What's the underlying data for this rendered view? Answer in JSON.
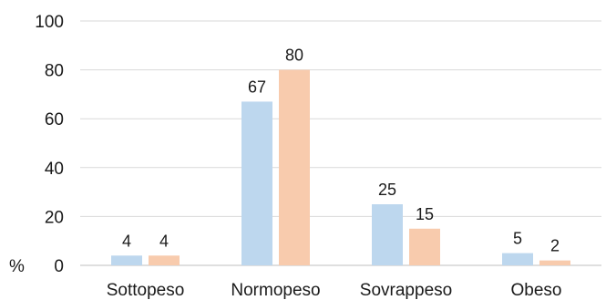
{
  "chart_data": {
    "type": "bar",
    "categories": [
      "Sottopeso",
      "Normopeso",
      "Sovrappeso",
      "Obeso"
    ],
    "series": [
      {
        "values": [
          4,
          67,
          25,
          5
        ],
        "color": "#bdd7ee"
      },
      {
        "values": [
          4,
          80,
          15,
          2
        ],
        "color": "#f8cbad"
      }
    ],
    "ylabel": "%",
    "ylim": [
      0,
      100
    ],
    "yticks": [
      0,
      20,
      40,
      60,
      80,
      100
    ],
    "grid": true,
    "gridColor": "#d9d9d9",
    "legend": "none",
    "data_labels": true
  }
}
